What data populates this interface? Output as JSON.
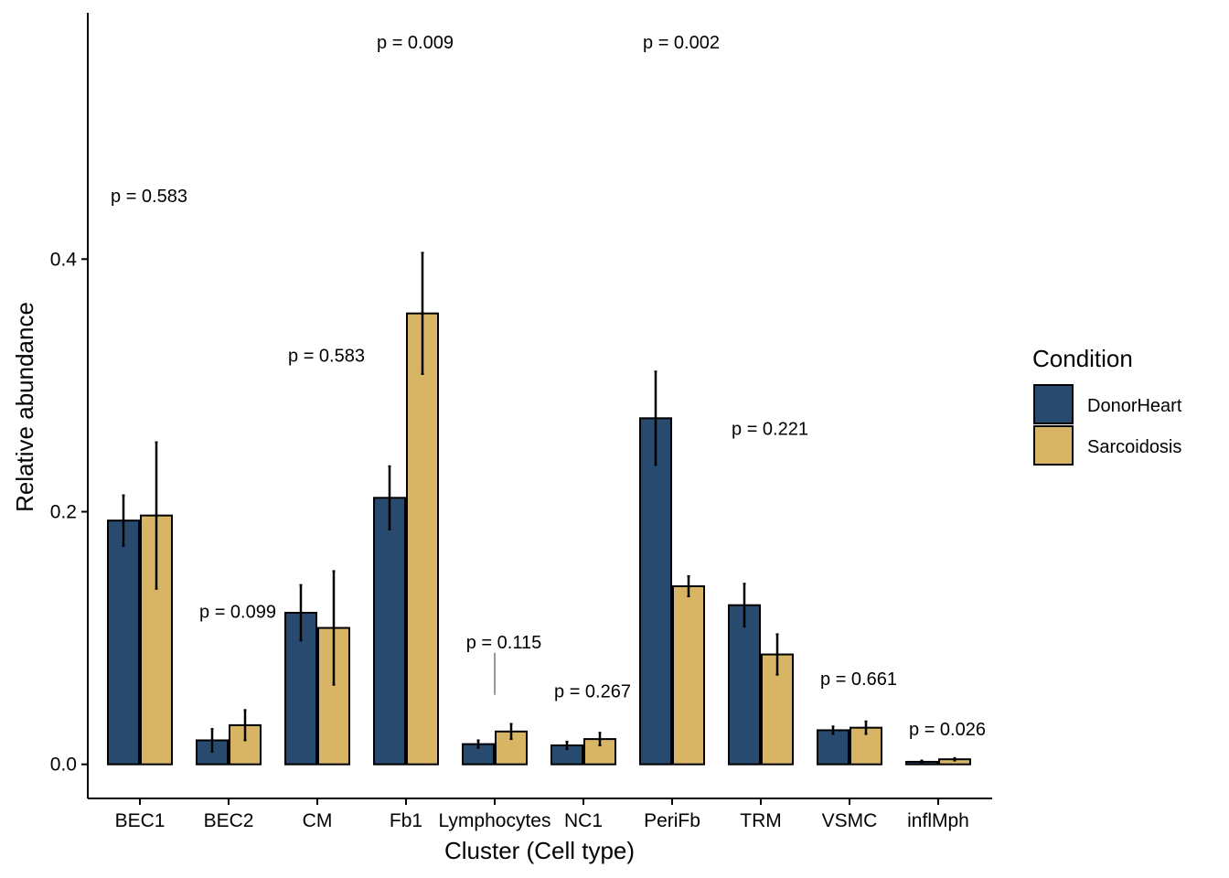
{
  "chart_data": {
    "type": "bar",
    "xlabel": "Cluster (Cell type)",
    "ylabel": "Relative abundance",
    "ylim": [
      -0.027,
      0.595
    ],
    "yticks": [
      0.0,
      0.2,
      0.4
    ],
    "ytick_labels": [
      "0.0",
      "0.2",
      "0.4"
    ],
    "grid": false,
    "legend": {
      "title": "Condition",
      "position": "right"
    },
    "categories": [
      "BEC1",
      "BEC2",
      "CM",
      "Fb1",
      "Lymphocytes",
      "NC1",
      "PeriFb",
      "TRM",
      "VSMC",
      "inflMph"
    ],
    "series": [
      {
        "name": "DonorHeart",
        "color": "#284A6F",
        "values": [
          0.193,
          0.019,
          0.12,
          0.211,
          0.016,
          0.015,
          0.274,
          0.126,
          0.027,
          0.002
        ],
        "err": [
          0.02,
          0.009,
          0.022,
          0.025,
          0.003,
          0.003,
          0.037,
          0.017,
          0.003,
          0.001
        ]
      },
      {
        "name": "Sarcoidosis",
        "color": "#D8B565",
        "values": [
          0.197,
          0.031,
          0.108,
          0.357,
          0.026,
          0.02,
          0.141,
          0.087,
          0.029,
          0.004
        ],
        "err": [
          0.058,
          0.012,
          0.045,
          0.048,
          0.006,
          0.005,
          0.008,
          0.016,
          0.005,
          0.001
        ]
      }
    ],
    "annotations": [
      {
        "text": "p = 0.583",
        "category": "BEC1",
        "y": 0.45
      },
      {
        "text": "p = 0.099",
        "category": "BEC2",
        "y": 0.121
      },
      {
        "text": "p = 0.583",
        "category": "CM",
        "y": 0.324
      },
      {
        "text": "p = 0.009",
        "category": "Fb1",
        "y": 0.572
      },
      {
        "text": "p = 0.115",
        "category": "Lymphocytes",
        "y": 0.097,
        "line_to": 0.055
      },
      {
        "text": "p = 0.267",
        "category": "NC1",
        "y": 0.058
      },
      {
        "text": "p = 0.002",
        "category": "PeriFb",
        "y": 0.572
      },
      {
        "text": "p = 0.221",
        "category": "TRM",
        "y": 0.266
      },
      {
        "text": "p = 0.661",
        "category": "VSMC",
        "y": 0.068
      },
      {
        "text": "p = 0.026",
        "category": "inflMph",
        "y": 0.028
      }
    ]
  }
}
